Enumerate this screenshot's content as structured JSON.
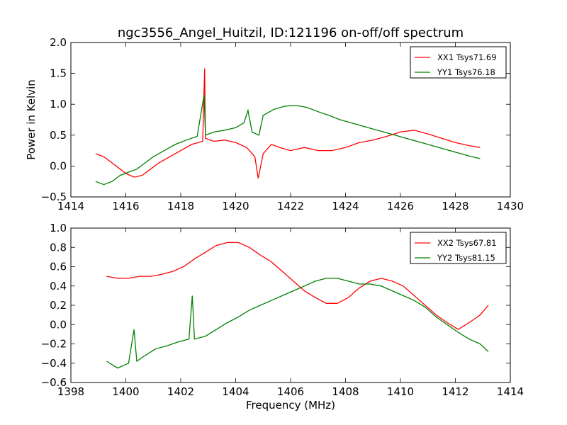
{
  "chart_data": [
    {
      "type": "line",
      "title": "ngc3556_Angel_Huitzil, ID:121196 on-off/off spectrum",
      "xlabel": "",
      "ylabel": "Power in Kelvin",
      "xlim": [
        1414,
        1430
      ],
      "ylim": [
        -0.5,
        2.0
      ],
      "xticks": [
        "1414",
        "1416",
        "1418",
        "1420",
        "1422",
        "1424",
        "1426",
        "1428",
        "1430"
      ],
      "yticks": [
        "−0.5",
        "0.0",
        "0.5",
        "1.0",
        "1.5",
        "2.0"
      ],
      "grid": false,
      "legend_position": "top-right",
      "series": [
        {
          "name": "XX1 Tsys71.69",
          "color": "#ff0000",
          "points": [
            [
              1414.9,
              0.2
            ],
            [
              1415.2,
              0.15
            ],
            [
              1415.5,
              0.05
            ],
            [
              1415.8,
              -0.05
            ],
            [
              1416.0,
              -0.12
            ],
            [
              1416.3,
              -0.18
            ],
            [
              1416.6,
              -0.15
            ],
            [
              1416.9,
              -0.05
            ],
            [
              1417.2,
              0.05
            ],
            [
              1417.6,
              0.15
            ],
            [
              1418.0,
              0.25
            ],
            [
              1418.4,
              0.35
            ],
            [
              1418.8,
              0.4
            ],
            [
              1418.87,
              1.58
            ],
            [
              1418.9,
              0.45
            ],
            [
              1419.2,
              0.4
            ],
            [
              1419.6,
              0.42
            ],
            [
              1420.0,
              0.38
            ],
            [
              1420.4,
              0.3
            ],
            [
              1420.7,
              0.15
            ],
            [
              1420.82,
              -0.2
            ],
            [
              1421.0,
              0.2
            ],
            [
              1421.3,
              0.35
            ],
            [
              1421.6,
              0.3
            ],
            [
              1422.0,
              0.25
            ],
            [
              1422.5,
              0.3
            ],
            [
              1423.0,
              0.25
            ],
            [
              1423.5,
              0.25
            ],
            [
              1424.0,
              0.3
            ],
            [
              1424.5,
              0.38
            ],
            [
              1425.0,
              0.42
            ],
            [
              1425.5,
              0.48
            ],
            [
              1426.0,
              0.55
            ],
            [
              1426.5,
              0.58
            ],
            [
              1427.0,
              0.52
            ],
            [
              1427.5,
              0.45
            ],
            [
              1428.0,
              0.38
            ],
            [
              1428.5,
              0.33
            ],
            [
              1428.9,
              0.3
            ]
          ]
        },
        {
          "name": "YY1 Tsys76.18",
          "color": "#008000",
          "points": [
            [
              1414.9,
              -0.25
            ],
            [
              1415.2,
              -0.3
            ],
            [
              1415.5,
              -0.25
            ],
            [
              1415.8,
              -0.15
            ],
            [
              1416.1,
              -0.1
            ],
            [
              1416.4,
              -0.05
            ],
            [
              1416.7,
              0.05
            ],
            [
              1417.0,
              0.15
            ],
            [
              1417.4,
              0.25
            ],
            [
              1417.8,
              0.35
            ],
            [
              1418.2,
              0.42
            ],
            [
              1418.6,
              0.48
            ],
            [
              1418.85,
              1.15
            ],
            [
              1418.9,
              0.5
            ],
            [
              1419.2,
              0.55
            ],
            [
              1419.6,
              0.58
            ],
            [
              1420.0,
              0.62
            ],
            [
              1420.3,
              0.7
            ],
            [
              1420.45,
              0.9
            ],
            [
              1420.6,
              0.55
            ],
            [
              1420.85,
              0.5
            ],
            [
              1421.0,
              0.82
            ],
            [
              1421.4,
              0.92
            ],
            [
              1421.8,
              0.97
            ],
            [
              1422.2,
              0.98
            ],
            [
              1422.6,
              0.95
            ],
            [
              1423.0,
              0.88
            ],
            [
              1423.4,
              0.82
            ],
            [
              1423.8,
              0.75
            ],
            [
              1424.2,
              0.7
            ],
            [
              1424.6,
              0.65
            ],
            [
              1425.0,
              0.6
            ],
            [
              1425.4,
              0.55
            ],
            [
              1425.8,
              0.5
            ],
            [
              1426.2,
              0.45
            ],
            [
              1426.6,
              0.4
            ],
            [
              1427.0,
              0.35
            ],
            [
              1427.4,
              0.3
            ],
            [
              1427.8,
              0.25
            ],
            [
              1428.2,
              0.2
            ],
            [
              1428.6,
              0.15
            ],
            [
              1428.9,
              0.12
            ]
          ]
        }
      ]
    },
    {
      "type": "line",
      "title": "",
      "xlabel": "Frequency (MHz)",
      "ylabel": "",
      "xlim": [
        1398,
        1414
      ],
      "ylim": [
        -0.6,
        1.0
      ],
      "xticks": [
        "1398",
        "1400",
        "1402",
        "1404",
        "1406",
        "1408",
        "1410",
        "1412",
        "1414"
      ],
      "yticks": [
        "−0.6",
        "−0.4",
        "−0.2",
        "0.0",
        "0.2",
        "0.4",
        "0.6",
        "0.8",
        "1.0"
      ],
      "grid": false,
      "legend_position": "top-right",
      "series": [
        {
          "name": "XX2 Tsys67.81",
          "color": "#ff0000",
          "points": [
            [
              1399.3,
              0.5
            ],
            [
              1399.7,
              0.48
            ],
            [
              1400.1,
              0.48
            ],
            [
              1400.5,
              0.5
            ],
            [
              1400.9,
              0.5
            ],
            [
              1401.3,
              0.52
            ],
            [
              1401.7,
              0.55
            ],
            [
              1402.1,
              0.6
            ],
            [
              1402.5,
              0.68
            ],
            [
              1402.9,
              0.75
            ],
            [
              1403.3,
              0.82
            ],
            [
              1403.7,
              0.85
            ],
            [
              1404.1,
              0.85
            ],
            [
              1404.5,
              0.8
            ],
            [
              1404.9,
              0.72
            ],
            [
              1405.3,
              0.65
            ],
            [
              1405.7,
              0.55
            ],
            [
              1406.1,
              0.45
            ],
            [
              1406.5,
              0.35
            ],
            [
              1406.9,
              0.28
            ],
            [
              1407.3,
              0.22
            ],
            [
              1407.7,
              0.22
            ],
            [
              1408.1,
              0.28
            ],
            [
              1408.5,
              0.38
            ],
            [
              1408.9,
              0.45
            ],
            [
              1409.3,
              0.48
            ],
            [
              1409.7,
              0.45
            ],
            [
              1410.1,
              0.4
            ],
            [
              1410.5,
              0.3
            ],
            [
              1410.9,
              0.2
            ],
            [
              1411.3,
              0.1
            ],
            [
              1411.7,
              0.02
            ],
            [
              1412.1,
              -0.05
            ],
            [
              1412.5,
              0.02
            ],
            [
              1412.9,
              0.1
            ],
            [
              1413.2,
              0.2
            ]
          ]
        },
        {
          "name": "YY2 Tsys81.15",
          "color": "#008000",
          "points": [
            [
              1399.3,
              -0.38
            ],
            [
              1399.7,
              -0.45
            ],
            [
              1400.1,
              -0.4
            ],
            [
              1400.3,
              -0.05
            ],
            [
              1400.4,
              -0.38
            ],
            [
              1400.7,
              -0.32
            ],
            [
              1401.1,
              -0.25
            ],
            [
              1401.5,
              -0.22
            ],
            [
              1401.9,
              -0.18
            ],
            [
              1402.3,
              -0.15
            ],
            [
              1402.42,
              0.3
            ],
            [
              1402.5,
              -0.15
            ],
            [
              1402.9,
              -0.12
            ],
            [
              1403.3,
              -0.05
            ],
            [
              1403.7,
              0.02
            ],
            [
              1404.1,
              0.08
            ],
            [
              1404.5,
              0.15
            ],
            [
              1404.9,
              0.2
            ],
            [
              1405.3,
              0.25
            ],
            [
              1405.7,
              0.3
            ],
            [
              1406.1,
              0.35
            ],
            [
              1406.5,
              0.4
            ],
            [
              1406.9,
              0.45
            ],
            [
              1407.3,
              0.48
            ],
            [
              1407.7,
              0.48
            ],
            [
              1408.1,
              0.45
            ],
            [
              1408.5,
              0.42
            ],
            [
              1408.9,
              0.42
            ],
            [
              1409.3,
              0.4
            ],
            [
              1409.7,
              0.35
            ],
            [
              1410.1,
              0.3
            ],
            [
              1410.5,
              0.25
            ],
            [
              1410.9,
              0.18
            ],
            [
              1411.3,
              0.08
            ],
            [
              1411.7,
              0.0
            ],
            [
              1412.1,
              -0.08
            ],
            [
              1412.5,
              -0.15
            ],
            [
              1412.9,
              -0.2
            ],
            [
              1413.2,
              -0.28
            ]
          ]
        }
      ]
    }
  ]
}
